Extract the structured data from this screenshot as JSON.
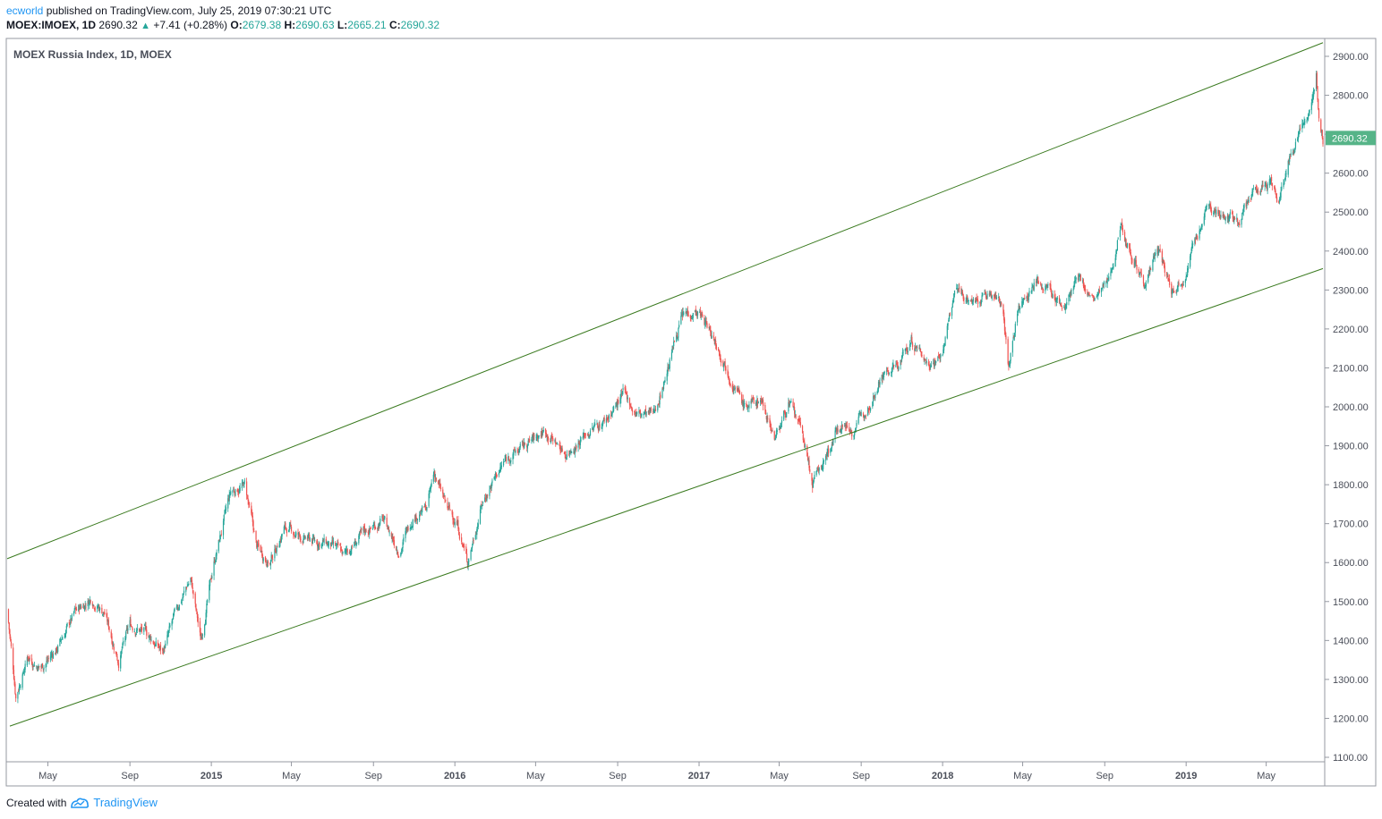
{
  "header": {
    "username": "ecworld",
    "published_text": " published on TradingView.com, July 25, 2019 07:30:21 UTC",
    "symbol": "MOEX:IMOEX, 1D",
    "last_price": "2690.32",
    "change": "+7.41 (+0.28%)",
    "open_label": "O:",
    "open": "2679.38",
    "high_label": "H:",
    "high": "2690.63",
    "low_label": "L:",
    "low": "2665.21",
    "close_label": "C:",
    "close": "2690.32"
  },
  "footer": {
    "created_with": "Created with",
    "brand": "TradingView"
  },
  "colors": {
    "up": "#26a69a",
    "down": "#ef5350",
    "channel": "#3a7a1f",
    "last_price_bg": "#56b488"
  },
  "chart_data": {
    "type": "candlestick",
    "title": "MOEX Russia Index, 1D, MOEX",
    "ylim": [
      1100,
      2900
    ],
    "y_ticks": [
      "2900.00",
      "2800.00",
      "2700.00",
      "2600.00",
      "2500.00",
      "2400.00",
      "2300.00",
      "2200.00",
      "2100.00",
      "2000.00",
      "1900.00",
      "1800.00",
      "1700.00",
      "1600.00",
      "1500.00",
      "1400.00",
      "1300.00",
      "1200.00",
      "1100.00"
    ],
    "x_ticks": [
      {
        "label": "May",
        "date": "2014-05-01",
        "bold": false
      },
      {
        "label": "Sep",
        "date": "2014-09-01",
        "bold": false
      },
      {
        "label": "2015",
        "date": "2015-01-01",
        "bold": true
      },
      {
        "label": "May",
        "date": "2015-05-01",
        "bold": false
      },
      {
        "label": "Sep",
        "date": "2015-09-01",
        "bold": false
      },
      {
        "label": "2016",
        "date": "2016-01-01",
        "bold": true
      },
      {
        "label": "May",
        "date": "2016-05-01",
        "bold": false
      },
      {
        "label": "Sep",
        "date": "2016-09-01",
        "bold": false
      },
      {
        "label": "2017",
        "date": "2017-01-01",
        "bold": true
      },
      {
        "label": "May",
        "date": "2017-05-01",
        "bold": false
      },
      {
        "label": "Sep",
        "date": "2017-09-01",
        "bold": false
      },
      {
        "label": "2018",
        "date": "2018-01-01",
        "bold": true
      },
      {
        "label": "May",
        "date": "2018-05-01",
        "bold": false
      },
      {
        "label": "Sep",
        "date": "2018-09-01",
        "bold": false
      },
      {
        "label": "2019",
        "date": "2019-01-01",
        "bold": true
      },
      {
        "label": "May",
        "date": "2019-05-01",
        "bold": false
      }
    ],
    "x_range": [
      "2014-03-01",
      "2019-07-25"
    ],
    "close_path": [
      {
        "date": "2014-03-01",
        "value": 1480
      },
      {
        "date": "2014-03-14",
        "value": 1260
      },
      {
        "date": "2014-04-01",
        "value": 1360
      },
      {
        "date": "2014-04-20",
        "value": 1330
      },
      {
        "date": "2014-05-15",
        "value": 1380
      },
      {
        "date": "2014-06-10",
        "value": 1470
      },
      {
        "date": "2014-07-05",
        "value": 1510
      },
      {
        "date": "2014-07-25",
        "value": 1470
      },
      {
        "date": "2014-08-15",
        "value": 1350
      },
      {
        "date": "2014-09-01",
        "value": 1440
      },
      {
        "date": "2014-09-25",
        "value": 1420
      },
      {
        "date": "2014-10-20",
        "value": 1370
      },
      {
        "date": "2014-11-15",
        "value": 1500
      },
      {
        "date": "2014-12-01",
        "value": 1560
      },
      {
        "date": "2014-12-16",
        "value": 1400
      },
      {
        "date": "2015-01-05",
        "value": 1600
      },
      {
        "date": "2015-01-30",
        "value": 1780
      },
      {
        "date": "2015-02-20",
        "value": 1800
      },
      {
        "date": "2015-03-10",
        "value": 1640
      },
      {
        "date": "2015-03-30",
        "value": 1600
      },
      {
        "date": "2015-04-20",
        "value": 1690
      },
      {
        "date": "2015-05-20",
        "value": 1660
      },
      {
        "date": "2015-06-20",
        "value": 1650
      },
      {
        "date": "2015-07-20",
        "value": 1620
      },
      {
        "date": "2015-08-20",
        "value": 1680
      },
      {
        "date": "2015-09-15",
        "value": 1710
      },
      {
        "date": "2015-10-10",
        "value": 1630
      },
      {
        "date": "2015-10-30",
        "value": 1720
      },
      {
        "date": "2015-11-20",
        "value": 1740
      },
      {
        "date": "2015-12-01",
        "value": 1830
      },
      {
        "date": "2015-12-20",
        "value": 1740
      },
      {
        "date": "2016-01-05",
        "value": 1700
      },
      {
        "date": "2016-01-20",
        "value": 1600
      },
      {
        "date": "2016-02-10",
        "value": 1750
      },
      {
        "date": "2016-03-01",
        "value": 1820
      },
      {
        "date": "2016-03-20",
        "value": 1870
      },
      {
        "date": "2016-04-15",
        "value": 1900
      },
      {
        "date": "2016-05-15",
        "value": 1940
      },
      {
        "date": "2016-06-15",
        "value": 1880
      },
      {
        "date": "2016-07-15",
        "value": 1930
      },
      {
        "date": "2016-08-15",
        "value": 1970
      },
      {
        "date": "2016-09-10",
        "value": 2030
      },
      {
        "date": "2016-10-01",
        "value": 1980
      },
      {
        "date": "2016-10-25",
        "value": 1980
      },
      {
        "date": "2016-11-15",
        "value": 2100
      },
      {
        "date": "2016-12-05",
        "value": 2230
      },
      {
        "date": "2016-12-25",
        "value": 2250
      },
      {
        "date": "2017-01-05",
        "value": 2230
      },
      {
        "date": "2017-01-25",
        "value": 2170
      },
      {
        "date": "2017-02-15",
        "value": 2090
      },
      {
        "date": "2017-03-10",
        "value": 2000
      },
      {
        "date": "2017-04-05",
        "value": 2020
      },
      {
        "date": "2017-04-25",
        "value": 1920
      },
      {
        "date": "2017-05-15",
        "value": 2010
      },
      {
        "date": "2017-06-05",
        "value": 1930
      },
      {
        "date": "2017-06-20",
        "value": 1800
      },
      {
        "date": "2017-07-10",
        "value": 1870
      },
      {
        "date": "2017-08-01",
        "value": 1960
      },
      {
        "date": "2017-08-20",
        "value": 1940
      },
      {
        "date": "2017-09-10",
        "value": 2000
      },
      {
        "date": "2017-10-01",
        "value": 2080
      },
      {
        "date": "2017-10-25",
        "value": 2100
      },
      {
        "date": "2017-11-15",
        "value": 2170
      },
      {
        "date": "2017-12-10",
        "value": 2110
      },
      {
        "date": "2018-01-01",
        "value": 2140
      },
      {
        "date": "2018-01-20",
        "value": 2300
      },
      {
        "date": "2018-02-15",
        "value": 2270
      },
      {
        "date": "2018-03-10",
        "value": 2290
      },
      {
        "date": "2018-04-01",
        "value": 2270
      },
      {
        "date": "2018-04-10",
        "value": 2100
      },
      {
        "date": "2018-04-25",
        "value": 2260
      },
      {
        "date": "2018-05-20",
        "value": 2320
      },
      {
        "date": "2018-06-10",
        "value": 2300
      },
      {
        "date": "2018-07-01",
        "value": 2250
      },
      {
        "date": "2018-07-25",
        "value": 2330
      },
      {
        "date": "2018-08-15",
        "value": 2270
      },
      {
        "date": "2018-09-05",
        "value": 2310
      },
      {
        "date": "2018-09-25",
        "value": 2470
      },
      {
        "date": "2018-10-10",
        "value": 2400
      },
      {
        "date": "2018-10-30",
        "value": 2320
      },
      {
        "date": "2018-11-20",
        "value": 2400
      },
      {
        "date": "2018-12-10",
        "value": 2300
      },
      {
        "date": "2018-12-27",
        "value": 2330
      },
      {
        "date": "2019-01-15",
        "value": 2430
      },
      {
        "date": "2019-02-05",
        "value": 2520
      },
      {
        "date": "2019-02-25",
        "value": 2490
      },
      {
        "date": "2019-03-20",
        "value": 2480
      },
      {
        "date": "2019-04-15",
        "value": 2550
      },
      {
        "date": "2019-05-05",
        "value": 2580
      },
      {
        "date": "2019-05-20",
        "value": 2530
      },
      {
        "date": "2019-06-05",
        "value": 2640
      },
      {
        "date": "2019-06-25",
        "value": 2730
      },
      {
        "date": "2019-07-10",
        "value": 2780
      },
      {
        "date": "2019-07-15",
        "value": 2840
      },
      {
        "date": "2019-07-19",
        "value": 2750
      },
      {
        "date": "2019-07-25",
        "value": 2690
      }
    ],
    "channel": {
      "upper": [
        {
          "date": "2014-03-01",
          "value": 1610
        },
        {
          "date": "2019-07-25",
          "value": 2935
        }
      ],
      "lower": [
        {
          "date": "2014-03-05",
          "value": 1180
        },
        {
          "date": "2019-07-25",
          "value": 2355
        }
      ]
    },
    "last_price_label": "2690.32"
  }
}
